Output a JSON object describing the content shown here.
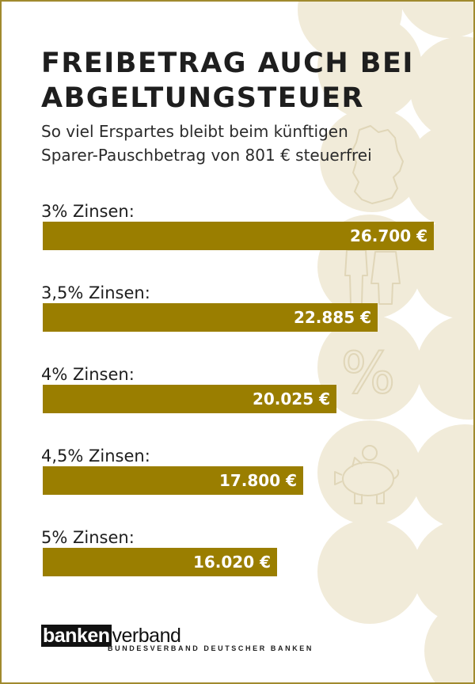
{
  "title_lines": [
    "FREIBETRAG AUCH BEI",
    "ABGELTUNGSTEUER"
  ],
  "subtitle_lines": [
    "So viel Erspartes bleibt beim künftigen",
    "Sparer-Pauschbetrag von 801 € steuerfrei"
  ],
  "colors": {
    "bar": "#9a7e00",
    "circles": "#f1ebd9",
    "icon_stroke": "#e0d6b8",
    "border": "#a08a2e"
  },
  "icons": [
    "germany-map-icon",
    "couple-icon",
    "percent-icon",
    "piggy-bank-icon"
  ],
  "decor_percent_symbol": "%",
  "chart_data": {
    "type": "bar",
    "orientation": "horizontal",
    "categories": [
      "3% Zinsen:",
      "3,5% Zinsen:",
      "4% Zinsen:",
      "4,5% Zinsen:",
      "5% Zinsen:"
    ],
    "values": [
      26700,
      22885,
      20025,
      17800,
      16020
    ],
    "value_labels": [
      "26.700 €",
      "22.885 €",
      "20.025 €",
      "17.800 €",
      "16.020 €"
    ],
    "title": "FREIBETRAG AUCH BEI ABGELTUNGSTEUER",
    "subtitle": "So viel Erspartes bleibt beim künftigen Sparer-Pauschbetrag von 801 € steuerfrei",
    "xlabel": "",
    "ylabel": "",
    "xlim": [
      0,
      26700
    ],
    "grid": false,
    "legend": "none"
  },
  "brand": {
    "logo_bold": "banken",
    "logo_rest": "verband",
    "tagline": "BUNDESVERBAND DEUTSCHER BANKEN"
  }
}
